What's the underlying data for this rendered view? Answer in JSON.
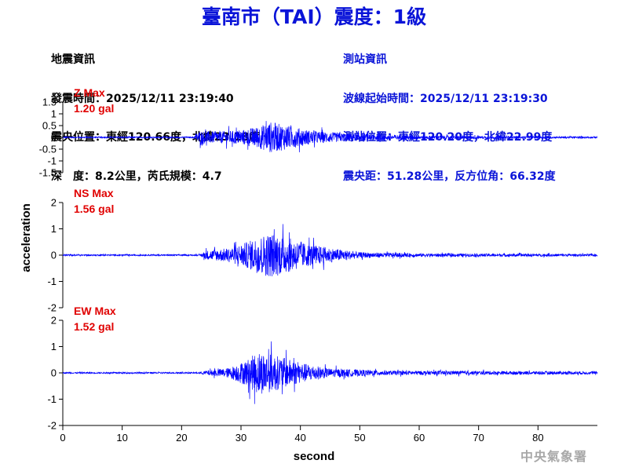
{
  "title": "臺南市（TAI）震度：1級",
  "earthquake_info": {
    "heading": "地震資訊",
    "origin_time": "發震時間：2025/12/11 23:19:40",
    "epicenter": "震央位置：東經120.66度，北緯23.18度",
    "depth_magnitude": "深　度：8.2公里，芮氏規模：4.7"
  },
  "station_info": {
    "heading": "測站資訊",
    "wave_start": "波線起始時間：2025/12/11 23:19:30",
    "location": "測站位置：東經120.20度，北緯22.99度",
    "distance": "震央距：51.28公里，反方位角：66.32度"
  },
  "watermark": "中央氣象署",
  "colors": {
    "title": "#0a14d8",
    "trace": "#0000ff",
    "max_label": "#e00000",
    "station_info": "#0a14d8"
  },
  "chart_data": {
    "type": "line",
    "xlabel": "second",
    "ylabel": "acceleration",
    "xlim": [
      0,
      90
    ],
    "x_ticks": [
      "0",
      "10",
      "20",
      "30",
      "40",
      "50",
      "60",
      "70",
      "80"
    ],
    "grid": false,
    "series": [
      {
        "name": "Z Max",
        "max_value": "1.20 gal",
        "ylim": [
          -1.5,
          1.5
        ],
        "y_ticks": [
          "-1.5",
          "-1",
          "-0.5",
          "0",
          "0.5",
          "1",
          "1.5"
        ],
        "envelope": [
          {
            "t": 0,
            "amp": 0.05
          },
          {
            "t": 22,
            "amp": 0.05
          },
          {
            "t": 23,
            "amp": 0.5
          },
          {
            "t": 26,
            "amp": 0.45
          },
          {
            "t": 30,
            "amp": 0.55
          },
          {
            "t": 33,
            "amp": 0.85
          },
          {
            "t": 35,
            "amp": 1.2
          },
          {
            "t": 38,
            "amp": 0.9
          },
          {
            "t": 42,
            "amp": 0.5
          },
          {
            "t": 48,
            "amp": 0.3
          },
          {
            "t": 60,
            "amp": 0.15
          },
          {
            "t": 75,
            "amp": 0.09
          },
          {
            "t": 90,
            "amp": 0.07
          }
        ]
      },
      {
        "name": "NS Max",
        "max_value": "1.56 gal",
        "ylim": [
          -2,
          2
        ],
        "y_ticks": [
          "-2",
          "-1",
          "0",
          "1",
          "2"
        ],
        "envelope": [
          {
            "t": 0,
            "amp": 0.05
          },
          {
            "t": 23,
            "amp": 0.05
          },
          {
            "t": 24,
            "amp": 0.3
          },
          {
            "t": 28,
            "amp": 0.5
          },
          {
            "t": 31,
            "amp": 0.9
          },
          {
            "t": 33,
            "amp": 1.3
          },
          {
            "t": 35,
            "amp": 1.56
          },
          {
            "t": 38,
            "amp": 1.2
          },
          {
            "t": 41,
            "amp": 0.8
          },
          {
            "t": 45,
            "amp": 0.5
          },
          {
            "t": 50,
            "amp": 0.2
          },
          {
            "t": 60,
            "amp": 0.12
          },
          {
            "t": 90,
            "amp": 0.08
          }
        ]
      },
      {
        "name": "EW Max",
        "max_value": "1.52 gal",
        "ylim": [
          -2,
          2
        ],
        "y_ticks": [
          "-2",
          "-1",
          "0",
          "1",
          "2"
        ],
        "envelope": [
          {
            "t": 0,
            "amp": 0.05
          },
          {
            "t": 23,
            "amp": 0.05
          },
          {
            "t": 24,
            "amp": 0.15
          },
          {
            "t": 28,
            "amp": 0.35
          },
          {
            "t": 31,
            "amp": 0.9
          },
          {
            "t": 33,
            "amp": 1.52
          },
          {
            "t": 36,
            "amp": 1.2
          },
          {
            "t": 40,
            "amp": 0.7
          },
          {
            "t": 45,
            "amp": 0.3
          },
          {
            "t": 55,
            "amp": 0.15
          },
          {
            "t": 90,
            "amp": 0.1
          }
        ]
      }
    ]
  }
}
